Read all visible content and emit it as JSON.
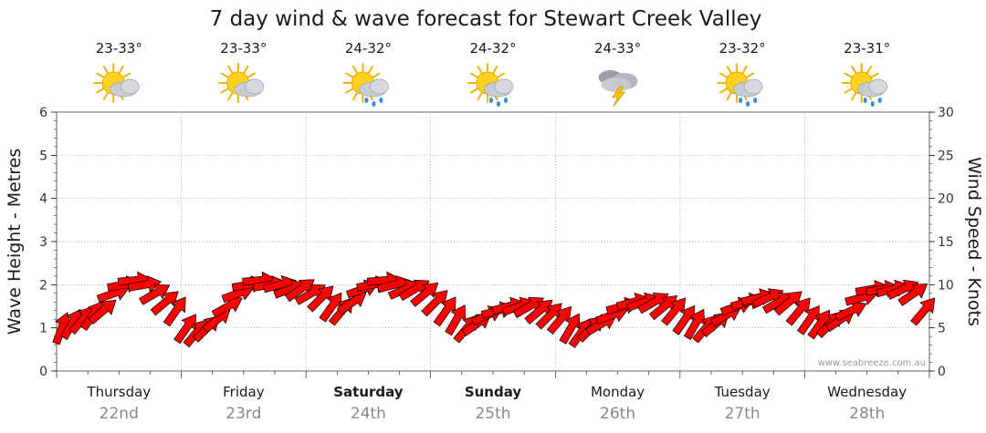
{
  "chart_data": {
    "type": "line",
    "title": "7 day wind & wave forecast for Stewart Creek Valley",
    "ylabel_left": "Wave Height - Metres",
    "ylabel_right": "Wind Speed - Knots",
    "ylim_left": [
      0,
      6
    ],
    "ylim_right": [
      0,
      30
    ],
    "yticks_left": [
      "0",
      "1",
      "2",
      "3",
      "4",
      "5",
      "6"
    ],
    "yticks_right": [
      "0",
      "5",
      "10",
      "15",
      "20",
      "25",
      "30"
    ],
    "watermark": "www.seabreeze.com.au",
    "days": [
      {
        "name": "Thursday",
        "date": "22nd",
        "temp": "23-33°",
        "icon": "sun-cloud-icon",
        "bold": false
      },
      {
        "name": "Friday",
        "date": "23rd",
        "temp": "23-33°",
        "icon": "sun-cloud-icon",
        "bold": false
      },
      {
        "name": "Saturday",
        "date": "24th",
        "temp": "24-32°",
        "icon": "sun-cloud-rain-icon",
        "bold": true
      },
      {
        "name": "Sunday",
        "date": "25th",
        "temp": "24-32°",
        "icon": "sun-cloud-rain-icon",
        "bold": true
      },
      {
        "name": "Monday",
        "date": "26th",
        "temp": "24-33°",
        "icon": "storm-icon",
        "bold": false
      },
      {
        "name": "Tuesday",
        "date": "27th",
        "temp": "23-32°",
        "icon": "sun-cloud-rain-icon",
        "bold": false
      },
      {
        "name": "Wednesday",
        "date": "28th",
        "temp": "23-31°",
        "icon": "sun-cloud-rain-icon",
        "bold": false
      }
    ],
    "wind_series": {
      "name": "Wind Speed (knots)",
      "values_per_day": [
        [
          5,
          5.5,
          6,
          6.5,
          7,
          9,
          10,
          10.5,
          10,
          9,
          8,
          7
        ],
        [
          5,
          4.5,
          5,
          6,
          7.5,
          9,
          10,
          10.5,
          10,
          10,
          9.5,
          9.5
        ],
        [
          9,
          8.5,
          7.5,
          7,
          8,
          9.5,
          10,
          10.5,
          10,
          9.5,
          9.5,
          9
        ],
        [
          8,
          7,
          6,
          5,
          5.5,
          6.5,
          7,
          7.5,
          7.5,
          7.5,
          7,
          6.5
        ],
        [
          6,
          5,
          4.5,
          5,
          5.5,
          6.5,
          7.5,
          8,
          8,
          8,
          7.5,
          7
        ],
        [
          6,
          5.5,
          5,
          5.5,
          6.5,
          7.5,
          8,
          8.5,
          8.5,
          8,
          8,
          7
        ],
        [
          6,
          5.5,
          5.5,
          6,
          7,
          8.5,
          9.5,
          9.5,
          9.5,
          9.5,
          9,
          7
        ]
      ],
      "direction_deg_per_day": [
        [
          200,
          210,
          220,
          215,
          230,
          250,
          260,
          265,
          260,
          240,
          230,
          215
        ],
        [
          215,
          220,
          225,
          230,
          240,
          250,
          260,
          265,
          260,
          255,
          250,
          235
        ],
        [
          240,
          225,
          215,
          220,
          235,
          250,
          260,
          265,
          255,
          245,
          240,
          230
        ],
        [
          225,
          215,
          210,
          220,
          235,
          245,
          255,
          255,
          250,
          240,
          230,
          225
        ],
        [
          220,
          210,
          215,
          225,
          240,
          250,
          255,
          255,
          250,
          240,
          230,
          220
        ],
        [
          215,
          210,
          220,
          230,
          240,
          250,
          255,
          255,
          245,
          240,
          230,
          220
        ],
        [
          215,
          215,
          225,
          235,
          245,
          255,
          260,
          260,
          255,
          245,
          235,
          220
        ]
      ]
    }
  }
}
